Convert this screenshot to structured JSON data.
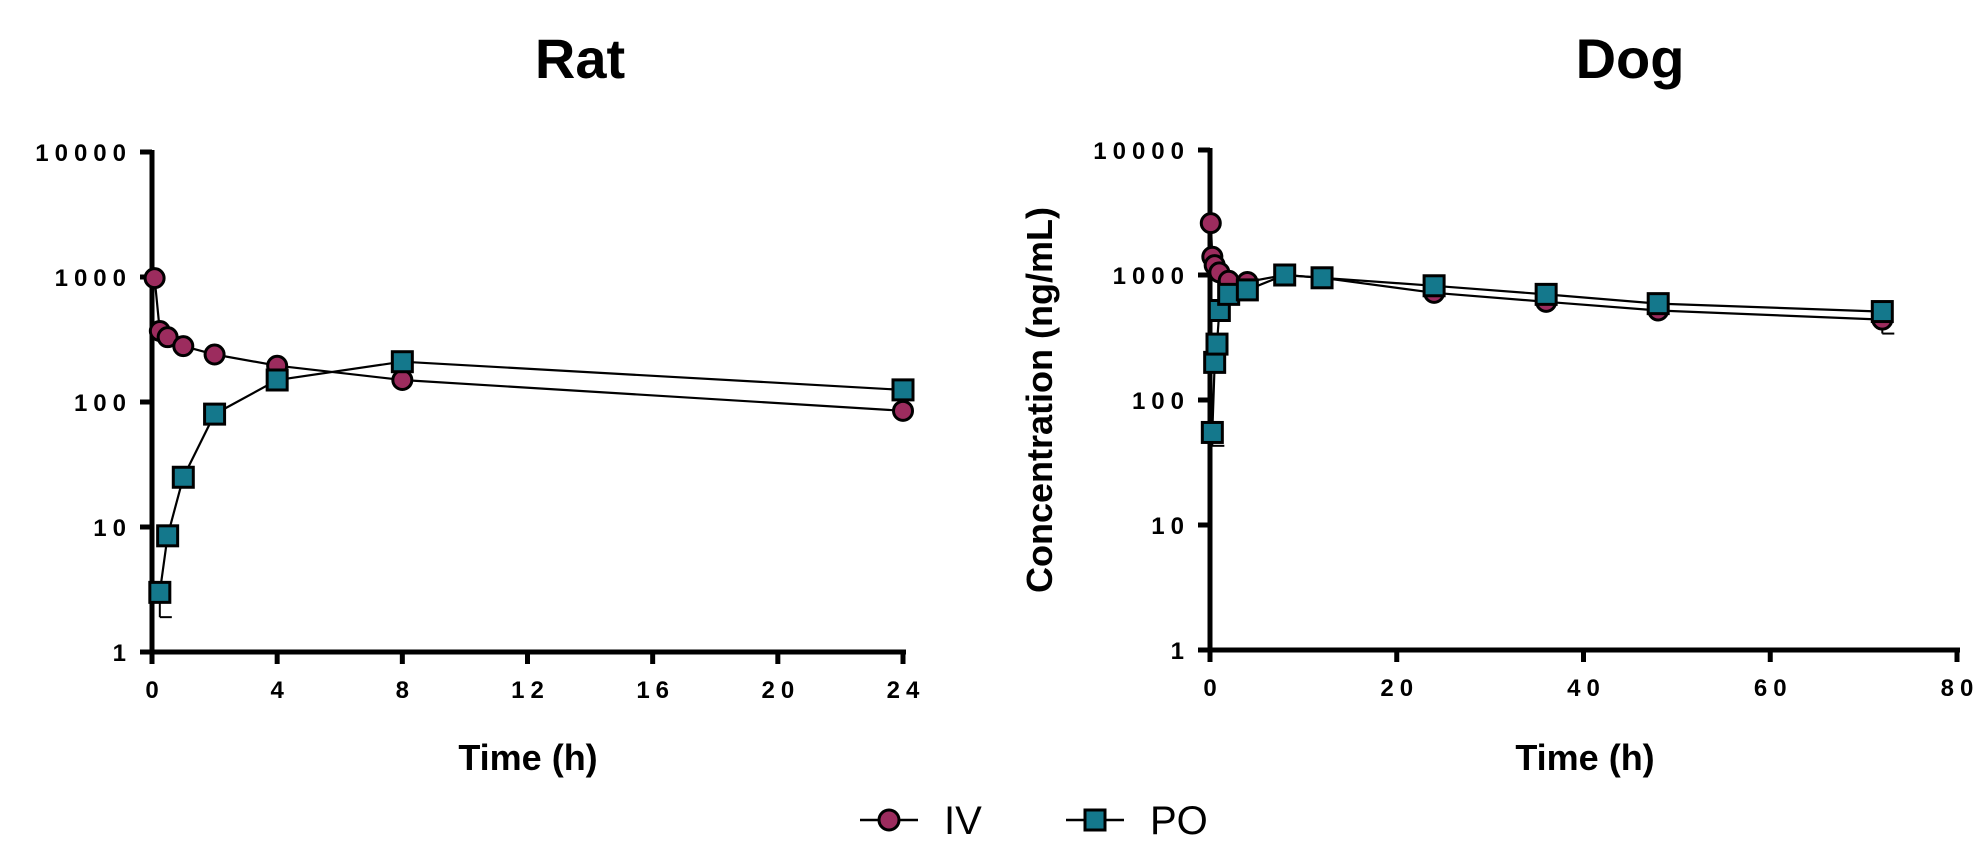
{
  "chart_data": [
    {
      "type": "line",
      "title": "Rat",
      "xlabel": "Time (h)",
      "ylabel": "",
      "y_scale": "log",
      "xlim": [
        0,
        24
      ],
      "ylim": [
        1,
        10000
      ],
      "x_ticks": [
        "0",
        "4",
        "8",
        "12",
        "16",
        "20",
        "24"
      ],
      "y_ticks": [
        "1",
        "10",
        "100",
        "1000",
        "10000"
      ],
      "grid": false,
      "series": [
        {
          "name": "IV",
          "color": "#9c2c5e",
          "marker": "circle",
          "points": [
            {
              "x": 0.083,
              "y": 980
            },
            {
              "x": 0.25,
              "y": 370
            },
            {
              "x": 0.5,
              "y": 330
            },
            {
              "x": 1,
              "y": 280
            },
            {
              "x": 2,
              "y": 240
            },
            {
              "x": 4,
              "y": 195
            },
            {
              "x": 8,
              "y": 150
            },
            {
              "x": 24,
              "y": 85
            }
          ]
        },
        {
          "name": "PO",
          "color": "#14788c",
          "marker": "square",
          "points": [
            {
              "x": 0.25,
              "y": 3,
              "err": 1.1
            },
            {
              "x": 0.5,
              "y": 8.5
            },
            {
              "x": 1,
              "y": 25
            },
            {
              "x": 2,
              "y": 80
            },
            {
              "x": 4,
              "y": 150
            },
            {
              "x": 8,
              "y": 210
            },
            {
              "x": 24,
              "y": 125
            }
          ]
        }
      ]
    },
    {
      "type": "line",
      "title": "Dog",
      "xlabel": "Time (h)",
      "ylabel": "Concentration (ng/mL)",
      "y_scale": "log",
      "xlim": [
        0,
        80
      ],
      "ylim": [
        1,
        10000
      ],
      "x_ticks": [
        "0",
        "20",
        "40",
        "60",
        "80"
      ],
      "y_ticks": [
        "1",
        "10",
        "100",
        "1000",
        "10000"
      ],
      "grid": false,
      "series": [
        {
          "name": "IV",
          "color": "#9c2c5e",
          "marker": "circle",
          "points": [
            {
              "x": 0.083,
              "y": 2600
            },
            {
              "x": 0.25,
              "y": 1400
            },
            {
              "x": 0.5,
              "y": 1200
            },
            {
              "x": 1,
              "y": 1050
            },
            {
              "x": 2,
              "y": 900
            },
            {
              "x": 4,
              "y": 880
            },
            {
              "x": 8,
              "y": 1000
            },
            {
              "x": 12,
              "y": 950
            },
            {
              "x": 24,
              "y": 720
            },
            {
              "x": 36,
              "y": 610
            },
            {
              "x": 48,
              "y": 520
            },
            {
              "x": 72,
              "y": 440,
              "err": 100
            }
          ]
        },
        {
          "name": "PO",
          "color": "#14788c",
          "marker": "square",
          "points": [
            {
              "x": 0.25,
              "y": 55,
              "err": 12
            },
            {
              "x": 0.5,
              "y": 200
            },
            {
              "x": 0.75,
              "y": 280
            },
            {
              "x": 1,
              "y": 520
            },
            {
              "x": 2,
              "y": 700
            },
            {
              "x": 4,
              "y": 760
            },
            {
              "x": 8,
              "y": 1000
            },
            {
              "x": 12,
              "y": 950
            },
            {
              "x": 24,
              "y": 820
            },
            {
              "x": 36,
              "y": 700
            },
            {
              "x": 48,
              "y": 590
            },
            {
              "x": 72,
              "y": 510
            }
          ]
        }
      ]
    }
  ],
  "legend": {
    "placement": "bottom-center",
    "items": [
      {
        "label": "IV",
        "marker": "circle",
        "color": "#9c2c5e"
      },
      {
        "label": "PO",
        "marker": "square",
        "color": "#14788c"
      }
    ]
  }
}
